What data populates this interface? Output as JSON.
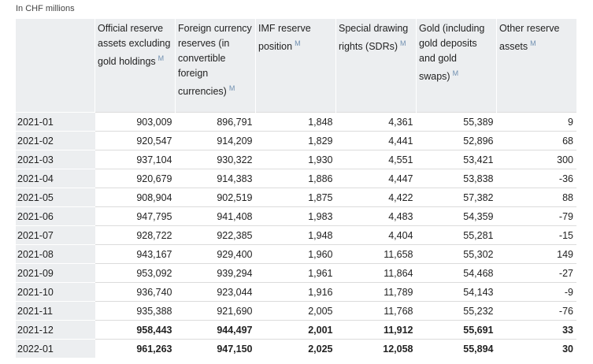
{
  "note": "In CHF millions",
  "table": {
    "columns": [
      {
        "label": "Official reserve assets excluding gold holdings",
        "marker": "M"
      },
      {
        "label": "Foreign currency reserves (in convertible foreign currencies)",
        "marker": "M"
      },
      {
        "label": "IMF reserve position",
        "marker": "M"
      },
      {
        "label": "Special drawing rights (SDRs)",
        "marker": "M"
      },
      {
        "label": "Gold (including gold deposits and gold swaps)",
        "marker": "M"
      },
      {
        "label": "Other reserve assets",
        "marker": "M"
      }
    ],
    "rows": [
      {
        "period": "2021-01",
        "values": [
          "903,009",
          "896,791",
          "1,848",
          "4,361",
          "55,389",
          "9"
        ],
        "bold": false
      },
      {
        "period": "2021-02",
        "values": [
          "920,547",
          "914,209",
          "1,829",
          "4,441",
          "52,896",
          "68"
        ],
        "bold": false
      },
      {
        "period": "2021-03",
        "values": [
          "937,104",
          "930,322",
          "1,930",
          "4,551",
          "53,421",
          "300"
        ],
        "bold": false
      },
      {
        "period": "2021-04",
        "values": [
          "920,679",
          "914,383",
          "1,886",
          "4,447",
          "53,838",
          "-36"
        ],
        "bold": false
      },
      {
        "period": "2021-05",
        "values": [
          "908,904",
          "902,519",
          "1,875",
          "4,422",
          "57,382",
          "88"
        ],
        "bold": false
      },
      {
        "period": "2021-06",
        "values": [
          "947,795",
          "941,408",
          "1,983",
          "4,483",
          "54,359",
          "-79"
        ],
        "bold": false
      },
      {
        "period": "2021-07",
        "values": [
          "928,722",
          "922,385",
          "1,948",
          "4,404",
          "55,281",
          "-15"
        ],
        "bold": false
      },
      {
        "period": "2021-08",
        "values": [
          "943,167",
          "929,400",
          "1,960",
          "11,658",
          "55,302",
          "149"
        ],
        "bold": false
      },
      {
        "period": "2021-09",
        "values": [
          "953,092",
          "939,294",
          "1,961",
          "11,864",
          "54,468",
          "-27"
        ],
        "bold": false
      },
      {
        "period": "2021-10",
        "values": [
          "936,740",
          "923,044",
          "1,916",
          "11,789",
          "54,143",
          "-9"
        ],
        "bold": false
      },
      {
        "period": "2021-11",
        "values": [
          "935,388",
          "921,690",
          "2,005",
          "11,768",
          "55,232",
          "-76"
        ],
        "bold": false
      },
      {
        "period": "2021-12",
        "values": [
          "958,443",
          "944,497",
          "2,001",
          "11,912",
          "55,691",
          "33"
        ],
        "bold": true
      },
      {
        "period": "2022-01",
        "values": [
          "961,263",
          "947,150",
          "2,025",
          "12,058",
          "55,894",
          "30"
        ],
        "bold": true
      }
    ]
  }
}
